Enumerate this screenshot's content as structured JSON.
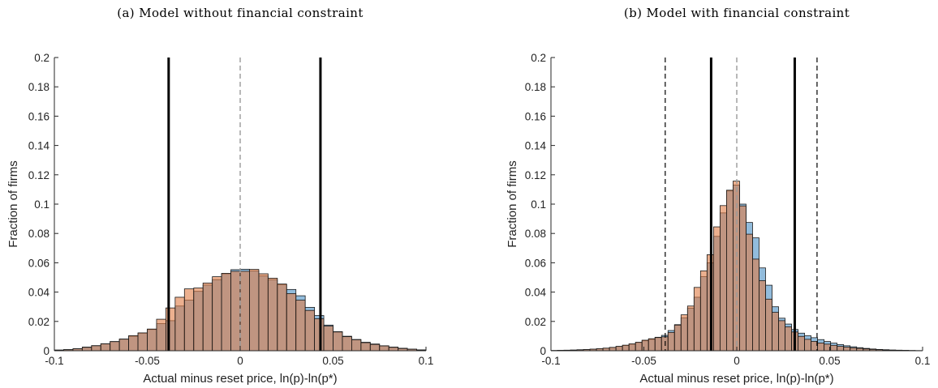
{
  "chart_data": [
    {
      "type": "bar",
      "title": "(a)  Model without financial constraint",
      "xlabel": "Actual minus reset price, ln(p)-ln(p*)",
      "ylabel": "Fraction of firms",
      "xlim": [
        -0.1,
        0.1
      ],
      "ylim": [
        0,
        0.2
      ],
      "xticks": [
        -0.1,
        -0.05,
        0,
        0.05,
        0.1
      ],
      "xtick_labels": [
        "-0.1",
        "-0.05",
        "0",
        "0.05",
        "0.1"
      ],
      "yticks": [
        0,
        0.02,
        0.04,
        0.06,
        0.08,
        0.1,
        0.12,
        0.14,
        0.16,
        0.18,
        0.2
      ],
      "ytick_labels": [
        "0",
        "0.02",
        "0.04",
        "0.06",
        "0.08",
        "0.1",
        "0.12",
        "0.14",
        "0.16",
        "0.18",
        "0.2"
      ],
      "grid": false,
      "bin_width": 0.005,
      "bin_centers": [
        -0.1025,
        -0.0975,
        -0.0925,
        -0.0875,
        -0.0825,
        -0.0775,
        -0.0725,
        -0.0675,
        -0.0625,
        -0.0575,
        -0.0525,
        -0.0475,
        -0.0425,
        -0.0375,
        -0.0325,
        -0.0275,
        -0.0225,
        -0.0175,
        -0.0125,
        -0.0075,
        -0.0025,
        0.0025,
        0.0075,
        0.0125,
        0.0175,
        0.0225,
        0.0275,
        0.0325,
        0.0375,
        0.0425,
        0.0475,
        0.0525,
        0.0575,
        0.0625,
        0.0675,
        0.0725,
        0.0775,
        0.0825,
        0.0875,
        0.0925,
        0.0975,
        0.1025
      ],
      "series": [
        {
          "color": "#4a90c4",
          "values": [
            0.0003,
            0.0005,
            0.0008,
            0.0014,
            0.0025,
            0.0035,
            0.0048,
            0.0063,
            0.008,
            0.0099,
            0.012,
            0.0145,
            0.0185,
            0.0205,
            0.0305,
            0.0345,
            0.0405,
            0.0448,
            0.0485,
            0.0525,
            0.0553,
            0.0556,
            0.0545,
            0.051,
            0.0485,
            0.045,
            0.0418,
            0.0375,
            0.0296,
            0.024,
            0.0175,
            0.013,
            0.0099,
            0.0077,
            0.0058,
            0.0046,
            0.0034,
            0.0025,
            0.0017,
            0.0011,
            0.0006,
            0.0003
          ]
        },
        {
          "color": "#e07b45",
          "values": [
            0.0002,
            0.0004,
            0.0007,
            0.0013,
            0.0023,
            0.0034,
            0.0047,
            0.0062,
            0.0079,
            0.0103,
            0.0122,
            0.0148,
            0.0215,
            0.0292,
            0.0365,
            0.0422,
            0.0428,
            0.0462,
            0.0505,
            0.0528,
            0.0542,
            0.0542,
            0.0555,
            0.0525,
            0.0495,
            0.0455,
            0.039,
            0.0345,
            0.0275,
            0.0218,
            0.0168,
            0.0128,
            0.0096,
            0.0075,
            0.0055,
            0.0043,
            0.0033,
            0.0023,
            0.0015,
            0.001,
            0.0005,
            0.0002
          ]
        }
      ],
      "vlines": [
        {
          "x": -0.0385,
          "style": "solid-bold"
        },
        {
          "x": 0.0432,
          "style": "solid-bold"
        },
        {
          "x": 0.0,
          "style": "dashed-gray"
        }
      ]
    },
    {
      "type": "bar",
      "title": "(b)  Model with financial constraint",
      "xlabel": "Actual minus reset price, ln(p)-ln(p*)",
      "ylabel": "Fraction of firms",
      "xlim": [
        -0.1,
        0.1
      ],
      "ylim": [
        0,
        0.2
      ],
      "xticks": [
        -0.1,
        -0.05,
        0,
        0.05,
        0.1
      ],
      "xtick_labels": [
        "-0.1",
        "-0.05",
        "0",
        "0.05",
        "0.1"
      ],
      "yticks": [
        0,
        0.02,
        0.04,
        0.06,
        0.08,
        0.1,
        0.12,
        0.14,
        0.16,
        0.18,
        0.2
      ],
      "ytick_labels": [
        "0",
        "0.02",
        "0.04",
        "0.06",
        "0.08",
        "0.1",
        "0.12",
        "0.14",
        "0.16",
        "0.18",
        "0.2"
      ],
      "grid": false,
      "bin_width": 0.0035,
      "bin_centers": [
        -0.09825,
        -0.09475,
        -0.09125,
        -0.08775,
        -0.08425,
        -0.08075,
        -0.07725,
        -0.07375,
        -0.07025,
        -0.06675,
        -0.06325,
        -0.05975,
        -0.05625,
        -0.05275,
        -0.04925,
        -0.04575,
        -0.04225,
        -0.03875,
        -0.03525,
        -0.03175,
        -0.02825,
        -0.02475,
        -0.02125,
        -0.01775,
        -0.01425,
        -0.01075,
        -0.00725,
        -0.00375,
        -0.00025,
        0.00325,
        0.00675,
        0.01025,
        0.01375,
        0.01725,
        0.02075,
        0.02425,
        0.02775,
        0.03125,
        0.03475,
        0.03825,
        0.04175,
        0.04525,
        0.04875,
        0.05225,
        0.05575,
        0.05925,
        0.06275,
        0.06625,
        0.06975,
        0.07325,
        0.07675,
        0.08025,
        0.08375,
        0.08725,
        0.09075,
        0.09425,
        0.09775
      ],
      "series": [
        {
          "color": "#4a90c4",
          "values": [
            0.0002,
            0.0003,
            0.0004,
            0.0005,
            0.0007,
            0.0008,
            0.001,
            0.0013,
            0.0017,
            0.0022,
            0.0029,
            0.0036,
            0.0045,
            0.0056,
            0.0068,
            0.0078,
            0.0092,
            0.0105,
            0.0138,
            0.0178,
            0.0225,
            0.029,
            0.0365,
            0.0505,
            0.06,
            0.078,
            0.094,
            0.109,
            0.113,
            0.1,
            0.0875,
            0.077,
            0.0565,
            0.0447,
            0.03,
            0.0222,
            0.0182,
            0.0145,
            0.012,
            0.0102,
            0.0089,
            0.0076,
            0.0063,
            0.0052,
            0.0042,
            0.0034,
            0.0027,
            0.0021,
            0.0016,
            0.0012,
            0.0009,
            0.0007,
            0.0005,
            0.0004,
            0.0003,
            0.0002,
            0.0001
          ]
        },
        {
          "color": "#e07b45",
          "values": [
            0.0001,
            0.0002,
            0.0003,
            0.0004,
            0.0006,
            0.0008,
            0.0011,
            0.0014,
            0.0018,
            0.0023,
            0.003,
            0.0038,
            0.0047,
            0.0058,
            0.0072,
            0.0082,
            0.009,
            0.0095,
            0.0125,
            0.0175,
            0.0245,
            0.0305,
            0.0432,
            0.0545,
            0.0655,
            0.0845,
            0.099,
            0.1095,
            0.1157,
            0.0988,
            0.0795,
            0.0625,
            0.0478,
            0.0352,
            0.0262,
            0.0205,
            0.0163,
            0.0128,
            0.0098,
            0.0078,
            0.0064,
            0.0053,
            0.0045,
            0.0037,
            0.003,
            0.0025,
            0.002,
            0.0016,
            0.0012,
            0.0009,
            0.0007,
            0.0005,
            0.0004,
            0.0003,
            0.0002,
            0.0001,
            0.0001
          ]
        }
      ],
      "vlines": [
        {
          "x": -0.0385,
          "style": "dashed-black"
        },
        {
          "x": 0.0432,
          "style": "dashed-black"
        },
        {
          "x": -0.0138,
          "style": "solid-bold"
        },
        {
          "x": 0.0312,
          "style": "solid-bold"
        },
        {
          "x": 0.0,
          "style": "dashed-gray"
        }
      ]
    }
  ]
}
